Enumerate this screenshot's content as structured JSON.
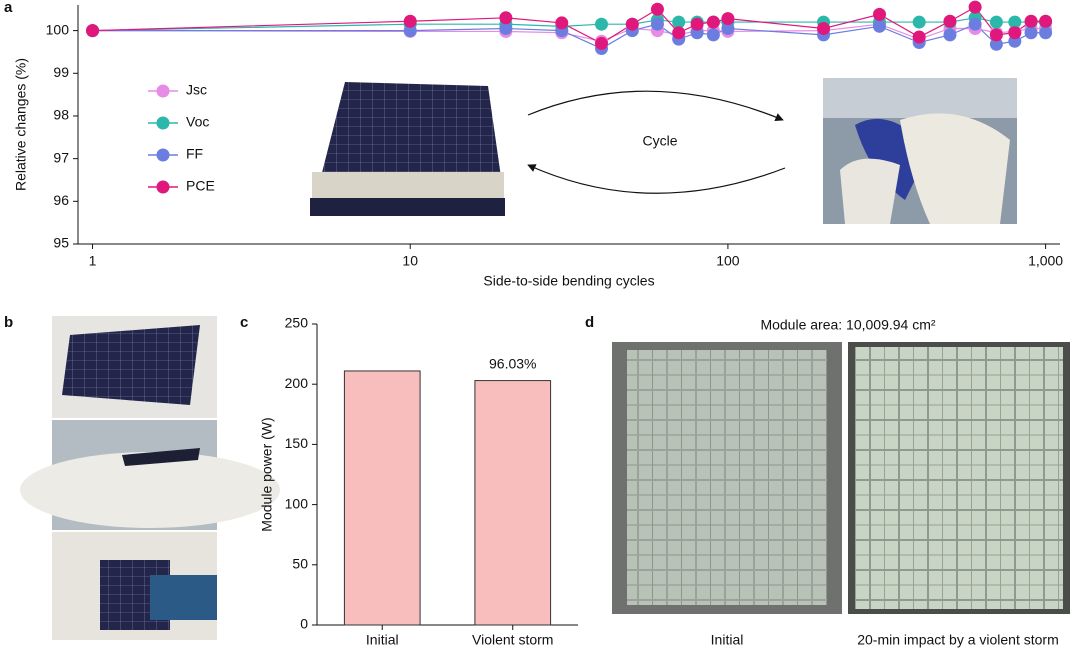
{
  "chart_data": [
    {
      "type": "line",
      "panel_label": "a",
      "xlabel": "Side-to-side bending cycles",
      "ylabel": "Relative changes (%)",
      "x": [
        1,
        10,
        20,
        30,
        40,
        50,
        60,
        70,
        80,
        90,
        100,
        200,
        300,
        400,
        500,
        600,
        700,
        800,
        900,
        1000
      ],
      "xscale": "log",
      "xlim": [
        0.9,
        1110
      ],
      "xticks": [
        1,
        10,
        100,
        {
          "value": 1000,
          "label": "1,000"
        }
      ],
      "ylim": [
        95,
        100.6
      ],
      "yticks": [
        95,
        96,
        97,
        98,
        99,
        100
      ],
      "legend": "left",
      "annotation": "Cycle",
      "series": [
        {
          "name": "Jsc",
          "color": "#e68be6",
          "values": [
            100,
            99.98,
            99.98,
            99.95,
            99.75,
            100.05,
            100.0,
            99.9,
            100.0,
            100.0,
            99.98,
            100.0,
            100.15,
            99.8,
            100.05,
            100.05,
            99.95,
            99.98,
            100.05,
            100.05
          ]
        },
        {
          "name": "Voc",
          "color": "#2bb8ab",
          "values": [
            100,
            100.15,
            100.15,
            100.1,
            100.15,
            100.15,
            100.25,
            100.2,
            100.2,
            100.2,
            100.2,
            100.2,
            100.2,
            100.2,
            100.2,
            100.3,
            100.2,
            100.2,
            100.2,
            100.2
          ]
        },
        {
          "name": "FF",
          "color": "#6b7ee0",
          "values": [
            100,
            100.0,
            100.05,
            100.0,
            99.58,
            100.0,
            100.15,
            99.8,
            99.95,
            99.9,
            100.05,
            99.9,
            100.1,
            99.72,
            99.9,
            100.15,
            99.68,
            99.75,
            99.95,
            99.95
          ]
        },
        {
          "name": "PCE",
          "color": "#e0187c",
          "values": [
            100,
            100.22,
            100.3,
            100.18,
            99.7,
            100.15,
            100.5,
            99.95,
            100.15,
            100.2,
            100.28,
            100.05,
            100.38,
            99.85,
            100.22,
            100.55,
            99.9,
            99.95,
            100.22,
            100.22
          ]
        }
      ]
    },
    {
      "type": "bar",
      "panel_label": "c",
      "ylabel": "Module power (W)",
      "categories": [
        "Initial",
        "Violent storm"
      ],
      "values": [
        211,
        203
      ],
      "color": "#f8bebe",
      "edgecolor": "#333333",
      "ylim": [
        0,
        250
      ],
      "yticks": [
        0,
        50,
        100,
        150,
        200,
        250
      ],
      "annotation": "96.03%"
    }
  ],
  "panel_b": {
    "label": "b"
  },
  "panel_d": {
    "label": "d",
    "title": "Module area: 10,009.94 cm²",
    "captions": [
      "Initial",
      "20-min impact by a violent storm"
    ]
  }
}
